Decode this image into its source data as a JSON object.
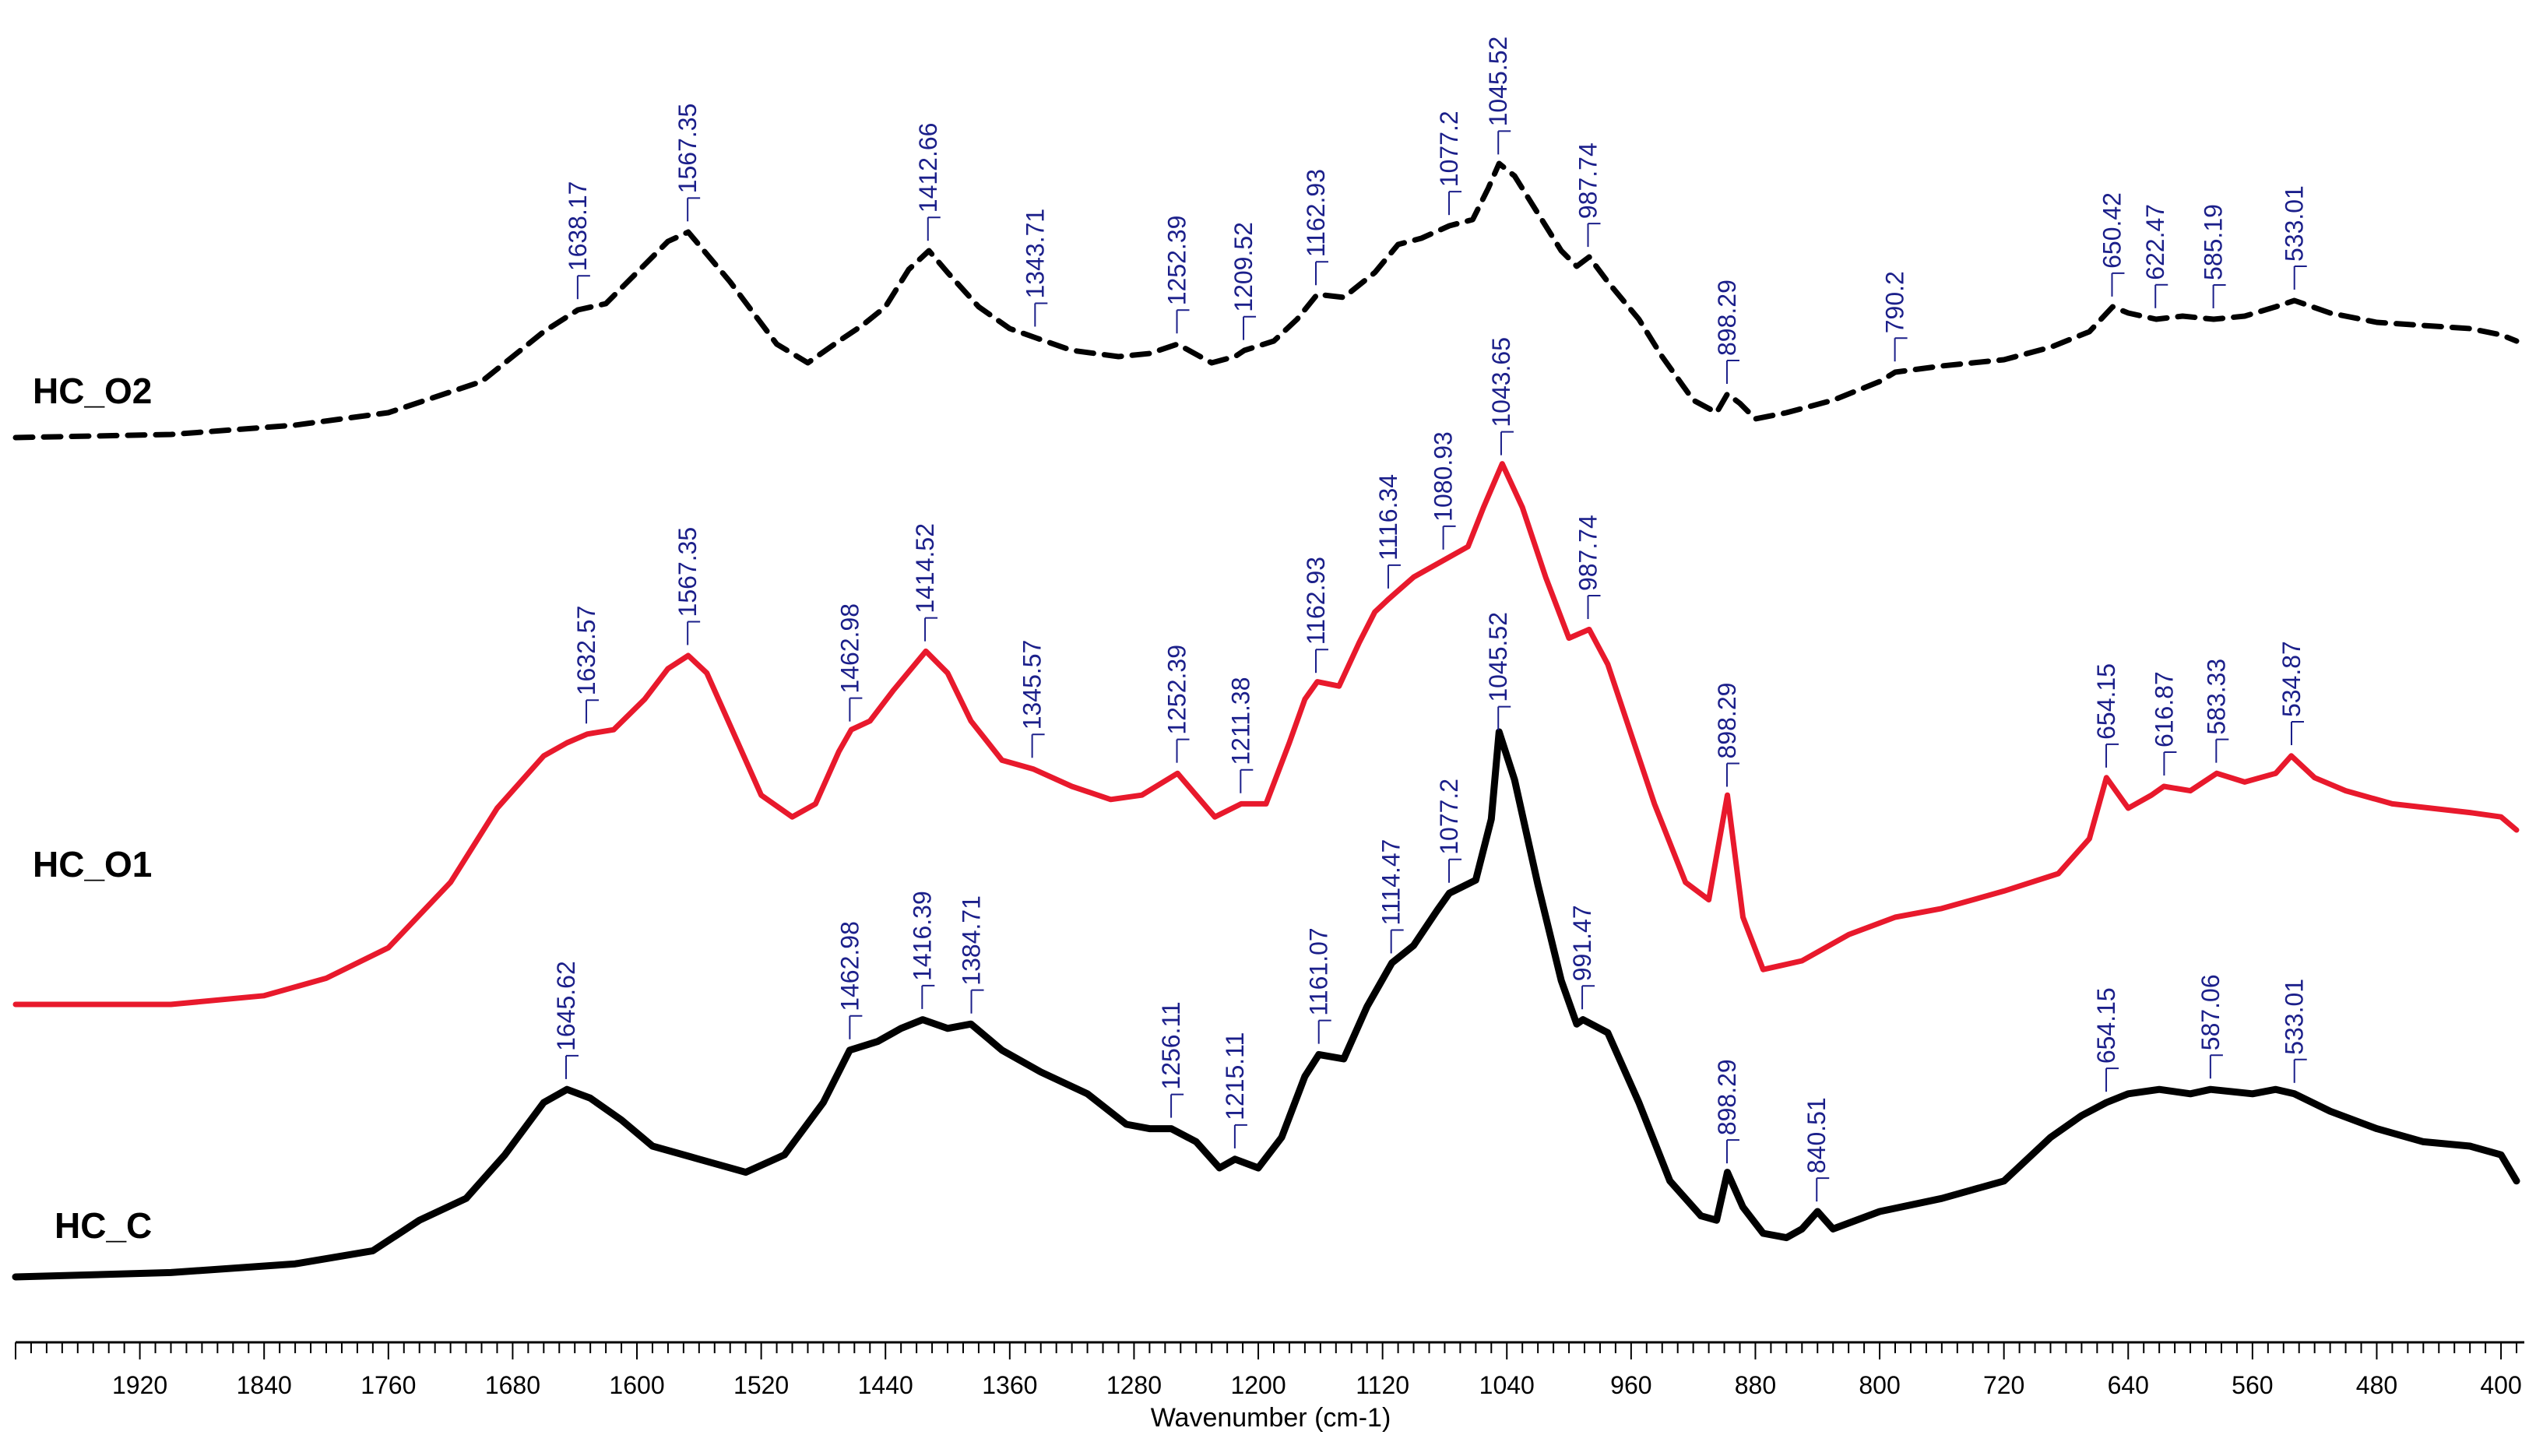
{
  "chart_data": {
    "type": "line",
    "title": "",
    "xlabel": "Wavenumber (cm-1)",
    "ylabel": "",
    "xlim": [
      2000,
      385
    ],
    "x_reversed": true,
    "x_ticks": [
      1920,
      1840,
      1760,
      1680,
      1600,
      1520,
      1440,
      1360,
      1280,
      1200,
      1120,
      1040,
      960,
      880,
      800,
      720,
      640,
      560,
      480,
      400
    ],
    "x_tick_labels": [
      "1920",
      "1840",
      "1760",
      "1680",
      "1600",
      "1520",
      "1440",
      "1360",
      "1280",
      "1200",
      "1120",
      "1040",
      "960",
      "880",
      "800",
      "720",
      "640",
      "560",
      "480",
      "400"
    ],
    "legend": "labels at left of each trace",
    "grid": false,
    "series": [
      {
        "name": "HC_O2",
        "color": "#000000",
        "style": "dashed",
        "points": [
          [
            2000,
            0.02
          ],
          [
            1900,
            0.03
          ],
          [
            1820,
            0.06
          ],
          [
            1760,
            0.1
          ],
          [
            1700,
            0.2
          ],
          [
            1660,
            0.36
          ],
          [
            1638,
            0.43
          ],
          [
            1620,
            0.45
          ],
          [
            1600,
            0.55
          ],
          [
            1580,
            0.65
          ],
          [
            1567,
            0.68
          ],
          [
            1540,
            0.52
          ],
          [
            1510,
            0.32
          ],
          [
            1490,
            0.26
          ],
          [
            1470,
            0.33
          ],
          [
            1455,
            0.38
          ],
          [
            1440,
            0.44
          ],
          [
            1425,
            0.56
          ],
          [
            1412,
            0.62
          ],
          [
            1400,
            0.55
          ],
          [
            1380,
            0.44
          ],
          [
            1360,
            0.37
          ],
          [
            1343,
            0.34
          ],
          [
            1320,
            0.3
          ],
          [
            1290,
            0.28
          ],
          [
            1270,
            0.29
          ],
          [
            1252,
            0.32
          ],
          [
            1230,
            0.26
          ],
          [
            1215,
            0.28
          ],
          [
            1209,
            0.3
          ],
          [
            1190,
            0.33
          ],
          [
            1175,
            0.4
          ],
          [
            1162,
            0.48
          ],
          [
            1145,
            0.47
          ],
          [
            1125,
            0.55
          ],
          [
            1110,
            0.64
          ],
          [
            1095,
            0.66
          ],
          [
            1077,
            0.7
          ],
          [
            1062,
            0.72
          ],
          [
            1052,
            0.82
          ],
          [
            1045,
            0.9
          ],
          [
            1035,
            0.86
          ],
          [
            1020,
            0.74
          ],
          [
            1005,
            0.62
          ],
          [
            995,
            0.57
          ],
          [
            987,
            0.6
          ],
          [
            975,
            0.52
          ],
          [
            955,
            0.4
          ],
          [
            940,
            0.28
          ],
          [
            920,
            0.14
          ],
          [
            905,
            0.1
          ],
          [
            898,
            0.16
          ],
          [
            890,
            0.13
          ],
          [
            880,
            0.08
          ],
          [
            860,
            0.1
          ],
          [
            830,
            0.14
          ],
          [
            800,
            0.2
          ],
          [
            790,
            0.23
          ],
          [
            760,
            0.25
          ],
          [
            720,
            0.27
          ],
          [
            690,
            0.31
          ],
          [
            665,
            0.36
          ],
          [
            650,
            0.44
          ],
          [
            640,
            0.42
          ],
          [
            622,
            0.4
          ],
          [
            605,
            0.41
          ],
          [
            585,
            0.4
          ],
          [
            565,
            0.41
          ],
          [
            545,
            0.44
          ],
          [
            533,
            0.46
          ],
          [
            510,
            0.42
          ],
          [
            480,
            0.39
          ],
          [
            450,
            0.38
          ],
          [
            420,
            0.37
          ],
          [
            400,
            0.35
          ],
          [
            390,
            0.33
          ]
        ],
        "peaks": [
          1638.17,
          1567.35,
          1412.66,
          1343.71,
          1252.39,
          1209.52,
          1162.93,
          1077.2,
          1045.52,
          987.74,
          898.29,
          790.2,
          650.42,
          622.47,
          585.19,
          533.01
        ],
        "peak_labels": [
          "1638.17",
          "1567.35",
          "1412.66",
          "1343.71",
          "1252.39",
          "1209.52",
          "1162.93",
          "1077.2",
          "1045.52",
          "987.74",
          "898.29",
          "790.2",
          "650.42",
          "622.47",
          "585.19",
          "533.01"
        ]
      },
      {
        "name": "HC_O1",
        "color": "#e8192c",
        "style": "solid",
        "points": [
          [
            2000,
            0.0
          ],
          [
            1900,
            0.0
          ],
          [
            1840,
            0.02
          ],
          [
            1800,
            0.06
          ],
          [
            1760,
            0.13
          ],
          [
            1720,
            0.28
          ],
          [
            1690,
            0.45
          ],
          [
            1660,
            0.57
          ],
          [
            1645,
            0.6
          ],
          [
            1632,
            0.62
          ],
          [
            1615,
            0.63
          ],
          [
            1595,
            0.7
          ],
          [
            1580,
            0.77
          ],
          [
            1567,
            0.8
          ],
          [
            1555,
            0.76
          ],
          [
            1540,
            0.64
          ],
          [
            1520,
            0.48
          ],
          [
            1500,
            0.43
          ],
          [
            1485,
            0.46
          ],
          [
            1470,
            0.58
          ],
          [
            1462,
            0.63
          ],
          [
            1450,
            0.65
          ],
          [
            1435,
            0.72
          ],
          [
            1414,
            0.81
          ],
          [
            1400,
            0.76
          ],
          [
            1385,
            0.65
          ],
          [
            1365,
            0.56
          ],
          [
            1345,
            0.54
          ],
          [
            1320,
            0.5
          ],
          [
            1295,
            0.47
          ],
          [
            1275,
            0.48
          ],
          [
            1252,
            0.53
          ],
          [
            1240,
            0.48
          ],
          [
            1228,
            0.43
          ],
          [
            1211,
            0.46
          ],
          [
            1195,
            0.46
          ],
          [
            1180,
            0.6
          ],
          [
            1170,
            0.7
          ],
          [
            1162,
            0.74
          ],
          [
            1148,
            0.73
          ],
          [
            1135,
            0.83
          ],
          [
            1125,
            0.9
          ],
          [
            1116,
            0.93
          ],
          [
            1100,
            0.98
          ],
          [
            1080,
            1.02
          ],
          [
            1065,
            1.05
          ],
          [
            1055,
            1.14
          ],
          [
            1043,
            1.24
          ],
          [
            1030,
            1.14
          ],
          [
            1015,
            0.98
          ],
          [
            1000,
            0.84
          ],
          [
            987,
            0.86
          ],
          [
            975,
            0.78
          ],
          [
            960,
            0.62
          ],
          [
            945,
            0.46
          ],
          [
            925,
            0.28
          ],
          [
            910,
            0.24
          ],
          [
            898,
            0.48
          ],
          [
            888,
            0.2
          ],
          [
            875,
            0.08
          ],
          [
            850,
            0.1
          ],
          [
            820,
            0.16
          ],
          [
            790,
            0.2
          ],
          [
            760,
            0.22
          ],
          [
            720,
            0.26
          ],
          [
            685,
            0.3
          ],
          [
            665,
            0.38
          ],
          [
            654,
            0.52
          ],
          [
            640,
            0.45
          ],
          [
            625,
            0.48
          ],
          [
            617,
            0.5
          ],
          [
            600,
            0.49
          ],
          [
            583,
            0.53
          ],
          [
            565,
            0.51
          ],
          [
            545,
            0.53
          ],
          [
            535,
            0.57
          ],
          [
            520,
            0.52
          ],
          [
            500,
            0.49
          ],
          [
            470,
            0.46
          ],
          [
            445,
            0.45
          ],
          [
            420,
            0.44
          ],
          [
            400,
            0.43
          ],
          [
            390,
            0.4
          ]
        ],
        "peaks": [
          1632.57,
          1567.35,
          1462.98,
          1414.52,
          1345.57,
          1252.39,
          1211.38,
          1162.93,
          1116.34,
          1080.93,
          1043.65,
          987.74,
          898.29,
          654.15,
          616.87,
          583.33,
          534.87
        ],
        "peak_labels": [
          "1632.57",
          "1567.35",
          "1462.98",
          "1414.52",
          "1345.57",
          "1252.39",
          "1211.38",
          "1162.93",
          "1116.34",
          "1080.93",
          "1043.65",
          "987.74",
          "898.29",
          "654.15",
          "616.87",
          "583.33",
          "534.87"
        ]
      },
      {
        "name": "HC_C",
        "color": "#000000",
        "style": "solid",
        "points": [
          [
            2000,
            0.0
          ],
          [
            1900,
            0.01
          ],
          [
            1820,
            0.03
          ],
          [
            1770,
            0.06
          ],
          [
            1740,
            0.13
          ],
          [
            1710,
            0.18
          ],
          [
            1685,
            0.28
          ],
          [
            1660,
            0.4
          ],
          [
            1645,
            0.43
          ],
          [
            1630,
            0.41
          ],
          [
            1610,
            0.36
          ],
          [
            1590,
            0.3
          ],
          [
            1560,
            0.27
          ],
          [
            1530,
            0.24
          ],
          [
            1505,
            0.28
          ],
          [
            1480,
            0.4
          ],
          [
            1463,
            0.52
          ],
          [
            1445,
            0.54
          ],
          [
            1430,
            0.57
          ],
          [
            1416,
            0.59
          ],
          [
            1400,
            0.57
          ],
          [
            1385,
            0.58
          ],
          [
            1365,
            0.52
          ],
          [
            1340,
            0.47
          ],
          [
            1310,
            0.42
          ],
          [
            1285,
            0.35
          ],
          [
            1270,
            0.34
          ],
          [
            1256,
            0.34
          ],
          [
            1240,
            0.31
          ],
          [
            1225,
            0.25
          ],
          [
            1215,
            0.27
          ],
          [
            1200,
            0.25
          ],
          [
            1185,
            0.32
          ],
          [
            1170,
            0.46
          ],
          [
            1161,
            0.51
          ],
          [
            1145,
            0.5
          ],
          [
            1130,
            0.62
          ],
          [
            1114,
            0.72
          ],
          [
            1100,
            0.76
          ],
          [
            1085,
            0.84
          ],
          [
            1077,
            0.88
          ],
          [
            1060,
            0.91
          ],
          [
            1050,
            1.05
          ],
          [
            1045,
            1.25
          ],
          [
            1035,
            1.14
          ],
          [
            1020,
            0.9
          ],
          [
            1005,
            0.68
          ],
          [
            995,
            0.58
          ],
          [
            991,
            0.59
          ],
          [
            975,
            0.56
          ],
          [
            955,
            0.4
          ],
          [
            935,
            0.22
          ],
          [
            915,
            0.14
          ],
          [
            905,
            0.13
          ],
          [
            898,
            0.24
          ],
          [
            888,
            0.16
          ],
          [
            875,
            0.1
          ],
          [
            860,
            0.09
          ],
          [
            850,
            0.11
          ],
          [
            840,
            0.15
          ],
          [
            830,
            0.11
          ],
          [
            800,
            0.15
          ],
          [
            760,
            0.18
          ],
          [
            720,
            0.22
          ],
          [
            690,
            0.32
          ],
          [
            670,
            0.37
          ],
          [
            654,
            0.4
          ],
          [
            640,
            0.42
          ],
          [
            620,
            0.43
          ],
          [
            600,
            0.42
          ],
          [
            587,
            0.43
          ],
          [
            560,
            0.42
          ],
          [
            545,
            0.43
          ],
          [
            533,
            0.42
          ],
          [
            510,
            0.38
          ],
          [
            480,
            0.34
          ],
          [
            450,
            0.31
          ],
          [
            420,
            0.3
          ],
          [
            400,
            0.28
          ],
          [
            390,
            0.22
          ]
        ],
        "peaks": [
          1645.62,
          1462.98,
          1416.39,
          1384.71,
          1256.11,
          1215.11,
          1161.07,
          1114.47,
          1077.2,
          1045.52,
          991.47,
          898.29,
          840.51,
          654.15,
          587.06,
          533.01
        ],
        "peak_labels": [
          "1645.62",
          "1462.98",
          "1416.39",
          "1384.71",
          "1256.11",
          "1215.11",
          "1161.07",
          "1114.47",
          "1077.2",
          "1045.52",
          "991.47",
          "898.29",
          "840.51",
          "654.15",
          "587.06",
          "533.01"
        ]
      }
    ],
    "colors": {
      "peak_label": "#1b1f8a",
      "axis": "#000000"
    }
  }
}
